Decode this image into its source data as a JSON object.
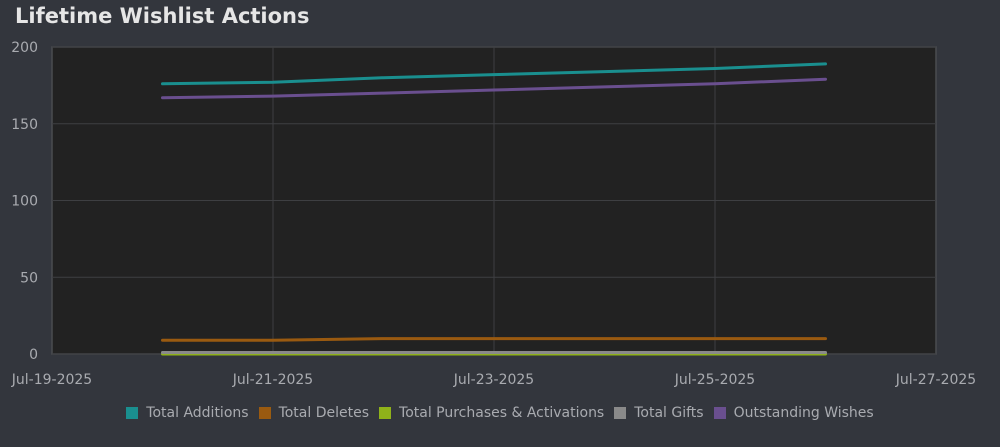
{
  "chart_data": {
    "type": "line",
    "title": "Lifetime Wishlist Actions",
    "xlabel": "",
    "ylabel": "",
    "ylim": [
      0,
      200
    ],
    "xlim": [
      "2025-07-19",
      "2025-07-27"
    ],
    "y_ticks": [
      "0",
      "50",
      "100",
      "150",
      "200"
    ],
    "x_ticks": [
      {
        "date": "2025-07-19",
        "label": "Jul-19-2025"
      },
      {
        "date": "2025-07-21",
        "label": "Jul-21-2025"
      },
      {
        "date": "2025-07-23",
        "label": "Jul-23-2025"
      },
      {
        "date": "2025-07-25",
        "label": "Jul-25-2025"
      },
      {
        "date": "2025-07-27",
        "label": "Jul-27-2025"
      }
    ],
    "grid": true,
    "legend_position": "bottom",
    "x": [
      "2025-07-20",
      "2025-07-21",
      "2025-07-22",
      "2025-07-23",
      "2025-07-24",
      "2025-07-25",
      "2025-07-26"
    ],
    "series": [
      {
        "name": "Total Additions",
        "color": "#1a8f8f",
        "values": [
          176,
          177,
          180,
          182,
          184,
          186,
          189
        ]
      },
      {
        "name": "Total Deletes",
        "color": "#9a5a10",
        "values": [
          9,
          9,
          10,
          10,
          10,
          10,
          10
        ]
      },
      {
        "name": "Total Purchases & Activations",
        "color": "#8fb21a",
        "values": [
          0,
          0,
          0,
          0,
          0,
          0,
          0
        ]
      },
      {
        "name": "Total Gifts",
        "color": "#8a8a8a",
        "values": [
          1,
          1,
          1,
          1,
          1,
          1,
          1
        ]
      },
      {
        "name": "Outstanding Wishes",
        "color": "#6a4f8f",
        "values": [
          167,
          168,
          170,
          172,
          174,
          176,
          179
        ]
      }
    ]
  }
}
